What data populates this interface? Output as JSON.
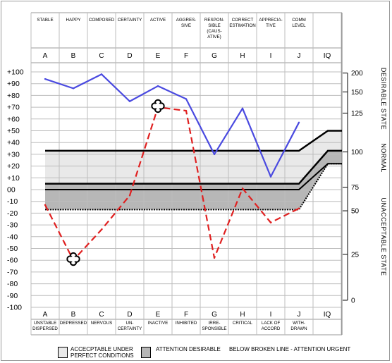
{
  "chart_data": {
    "type": "line",
    "columns": [
      {
        "letter": "A",
        "top": "STABLE",
        "bottom": "UNSTABLE DISPERSED"
      },
      {
        "letter": "B",
        "top": "HAPPY",
        "bottom": "DEPRESSED"
      },
      {
        "letter": "C",
        "top": "COMPOSED",
        "bottom": "NERVOUS"
      },
      {
        "letter": "D",
        "top": "CERTAINTY",
        "bottom": "UN- CERTAINTY"
      },
      {
        "letter": "E",
        "top": "ACTIVE",
        "bottom": "INACTIVE"
      },
      {
        "letter": "F",
        "top": "AGGRES- SIVE",
        "bottom": "INHIBITED"
      },
      {
        "letter": "G",
        "top": "RESPON- SIBLE (CAUS- ATIVE)",
        "bottom": "IRRE- SPONSIBLE"
      },
      {
        "letter": "H",
        "top": "CORRECT ESTIMATION",
        "bottom": "CRITICAL"
      },
      {
        "letter": "I",
        "top": "APPRECIA- TIVE",
        "bottom": "LACK OF ACCORD"
      },
      {
        "letter": "J",
        "top": "COMM LEVEL",
        "bottom": "WITH- DRAWN"
      },
      {
        "letter": "IQ",
        "top": "",
        "bottom": ""
      }
    ],
    "y_ticks": [
      "+100",
      "+90",
      "+80",
      "+70",
      "+60",
      "+50",
      "+40",
      "+30",
      "+20",
      "+10",
      "00",
      "-10",
      "-20",
      "-30",
      "-40",
      "-50",
      "-60",
      "-70",
      "-80",
      "-90",
      "-100"
    ],
    "ylim": [
      -100,
      100
    ],
    "iq_ticks": [
      {
        "label": "200",
        "value": 99
      },
      {
        "label": "150",
        "value": 83
      },
      {
        "label": "125",
        "value": 65
      },
      {
        "label": "100",
        "value": 32
      },
      {
        "label": "75",
        "value": 2
      },
      {
        "label": "50",
        "value": -18
      },
      {
        "label": "25",
        "value": -55
      },
      {
        "label": "0",
        "value": -94
      }
    ],
    "right_labels": [
      "DESIRABLE STATE",
      "NORMAL",
      "UNACCEPTABLE STATE"
    ],
    "series": [
      {
        "style": "solid",
        "color": "#4a4ae0",
        "values": [
          94,
          86,
          98,
          75,
          88,
          77,
          30,
          69,
          11,
          57
        ]
      },
      {
        "style": "dashed",
        "color": "#e02020",
        "values": [
          -13,
          -60,
          -34,
          -5,
          70,
          67,
          -58,
          1,
          -28,
          -16
        ]
      }
    ],
    "markers": [
      {
        "column": "B",
        "value": -59
      },
      {
        "column": "E",
        "value": 71
      }
    ],
    "bands": {
      "upper_line": [
        33,
        33,
        33,
        33,
        33,
        33,
        33,
        33,
        33,
        33,
        50,
        50
      ],
      "mid_line": [
        5,
        5,
        5,
        5,
        5,
        5,
        5,
        5,
        5,
        5,
        33,
        33
      ],
      "zero_line": [
        0,
        0,
        0,
        0,
        0,
        0,
        0,
        0,
        0,
        0,
        22,
        22
      ],
      "lower_line": [
        -17,
        -17,
        -17,
        -17,
        -17,
        -17,
        -17,
        -17,
        -17,
        -17,
        22,
        22
      ]
    },
    "legend": {
      "light_label": "ACCECPTABLE UNDER PERFECT CONDITIONS",
      "dark_label": "ATTENTION DESIRABLE",
      "urgent_note": "BELOW BROKEN LINE - ATTENTION URGENT",
      "light_color": "#e9e9e9",
      "dark_color": "#b7b7b7"
    }
  }
}
